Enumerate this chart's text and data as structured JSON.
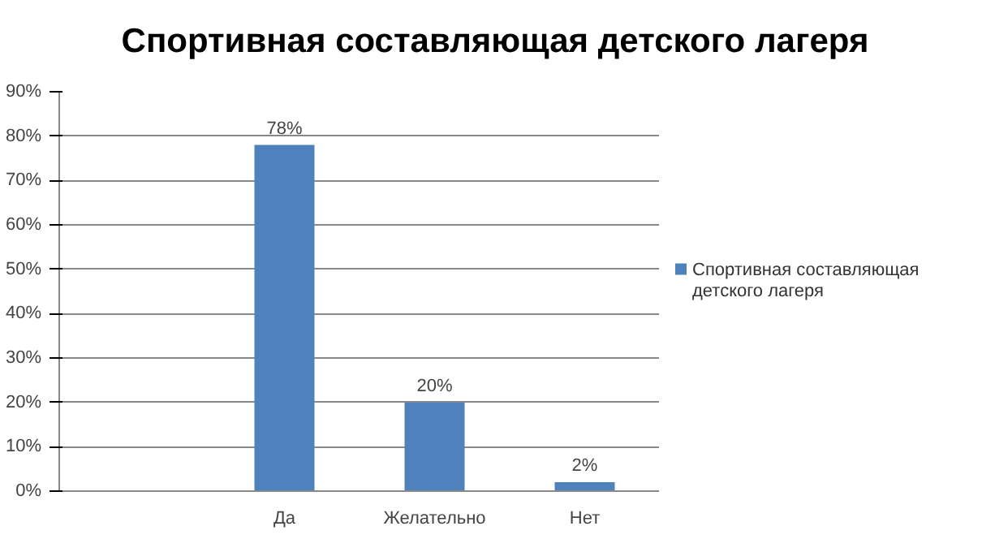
{
  "chart_data": {
    "type": "bar",
    "title": "Спортивная составляющая детского лагеря",
    "categories": [
      null,
      "Да",
      "Желательно",
      "Нет"
    ],
    "series": [
      {
        "name": "Спортивная составляющая детского лагеря",
        "color": "#4f81bd",
        "values": [
          null,
          78,
          20,
          2
        ],
        "value_labels": [
          null,
          "78%",
          "20%",
          "2%"
        ]
      }
    ],
    "ylim": [
      0,
      90
    ],
    "yticks": [
      {
        "value": 0,
        "label": "0%"
      },
      {
        "value": 10,
        "label": "10%"
      },
      {
        "value": 20,
        "label": "20%"
      },
      {
        "value": 30,
        "label": "30%"
      },
      {
        "value": 40,
        "label": "40%"
      },
      {
        "value": 50,
        "label": "50%"
      },
      {
        "value": 60,
        "label": "60%"
      },
      {
        "value": 70,
        "label": "70%"
      },
      {
        "value": 80,
        "label": "80%"
      },
      {
        "value": 90,
        "label": "90%"
      }
    ],
    "grid": "y",
    "legend": "right"
  }
}
